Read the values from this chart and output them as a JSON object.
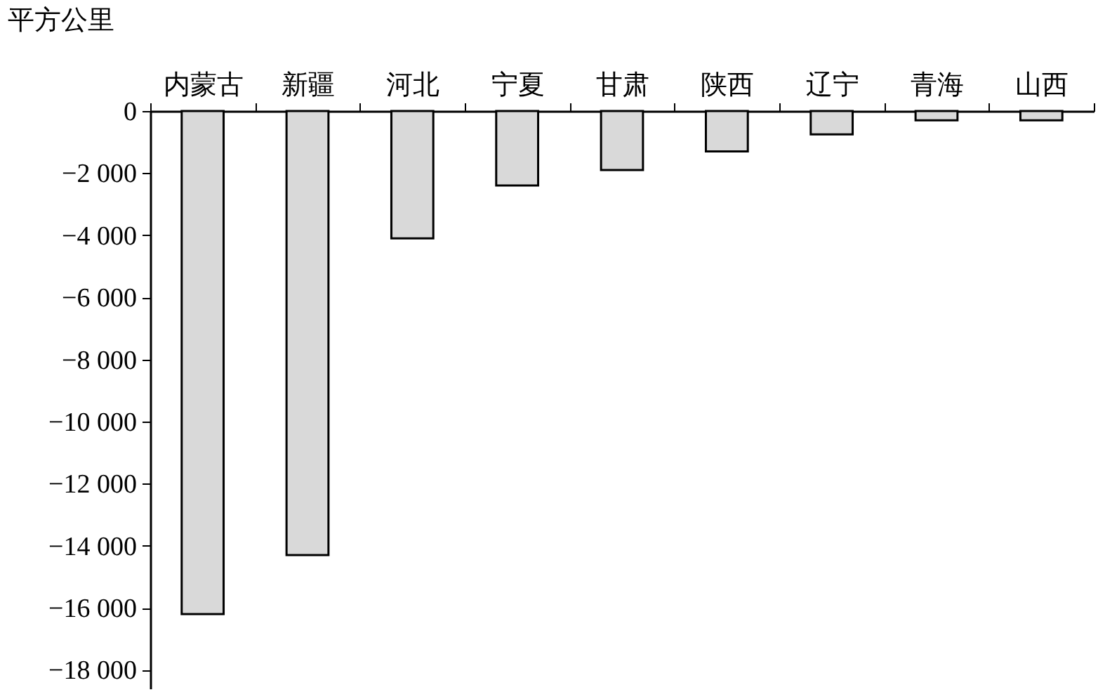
{
  "chart_data": {
    "type": "bar",
    "ylabel": "平方公里",
    "categories": [
      "内蒙古",
      "新疆",
      "河北",
      "宁夏",
      "甘肃",
      "陕西",
      "辽宁",
      "青海",
      "山西"
    ],
    "values": [
      -16200,
      -14300,
      -4100,
      -2400,
      -1900,
      -1300,
      -750,
      -300,
      -300
    ],
    "color": "#d9d9d9",
    "ylim": [
      -18600,
      0
    ],
    "yticks": [
      0,
      {
        "value": -2000,
        "label": "−2 000"
      },
      {
        "value": -4000,
        "label": "−4 000"
      },
      {
        "value": -6000,
        "label": "−6 000"
      },
      {
        "value": -8000,
        "label": "−8 000"
      },
      {
        "value": -10000,
        "label": "−10 000"
      },
      {
        "value": -12000,
        "label": "−12 000"
      },
      {
        "value": -14000,
        "label": "−14 000"
      },
      {
        "value": -16000,
        "label": "−16 000"
      },
      {
        "value": -18000,
        "label": "−18 000"
      }
    ],
    "grid": false
  }
}
